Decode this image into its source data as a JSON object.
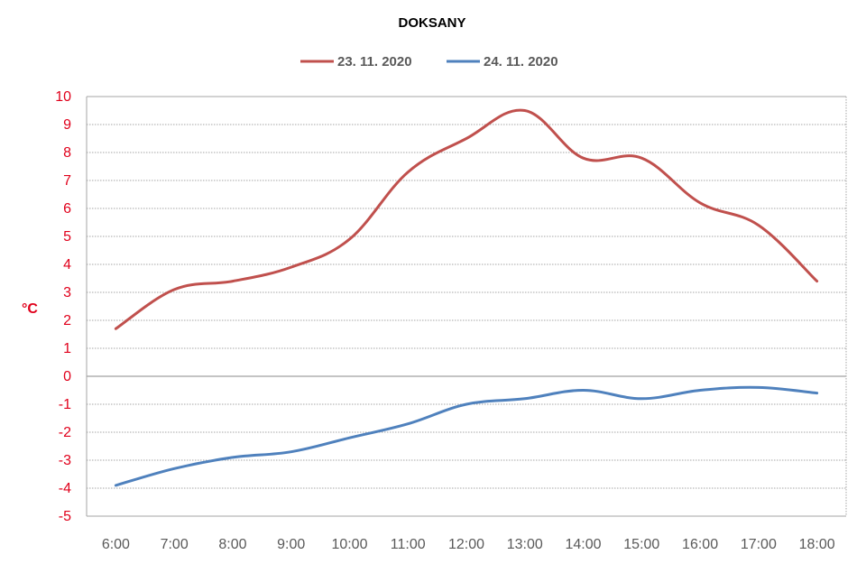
{
  "chart_data": {
    "type": "line",
    "title": "DOKSANY",
    "xlabel": "",
    "ylabel": "°C",
    "categories": [
      "6:00",
      "7:00",
      "8:00",
      "9:00",
      "10:00",
      "11:00",
      "12:00",
      "13:00",
      "14:00",
      "15:00",
      "16:00",
      "17:00",
      "18:00"
    ],
    "ylim": [
      -5,
      10
    ],
    "yticks": [
      10,
      9,
      8,
      7,
      6,
      5,
      4,
      3,
      2,
      1,
      0,
      -1,
      -2,
      -3,
      -4,
      -5
    ],
    "grid": true,
    "legend_position": "top",
    "series": [
      {
        "name": "23. 11. 2020",
        "color": "#C0504D",
        "values": [
          1.7,
          3.1,
          3.4,
          3.9,
          4.9,
          7.3,
          8.5,
          9.5,
          7.8,
          7.8,
          6.2,
          5.4,
          3.4
        ]
      },
      {
        "name": "24. 11. 2020",
        "color": "#4F81BD",
        "values": [
          -3.9,
          -3.3,
          -2.9,
          -2.7,
          -2.2,
          -1.7,
          -1.0,
          -0.8,
          -0.5,
          -0.8,
          -0.5,
          -0.4,
          -0.6
        ]
      }
    ],
    "axis_label_color": "#E0001B",
    "tick_label_color": "#595959",
    "grid_color": "#A6A6A6",
    "zero_line_color": "#888888"
  }
}
